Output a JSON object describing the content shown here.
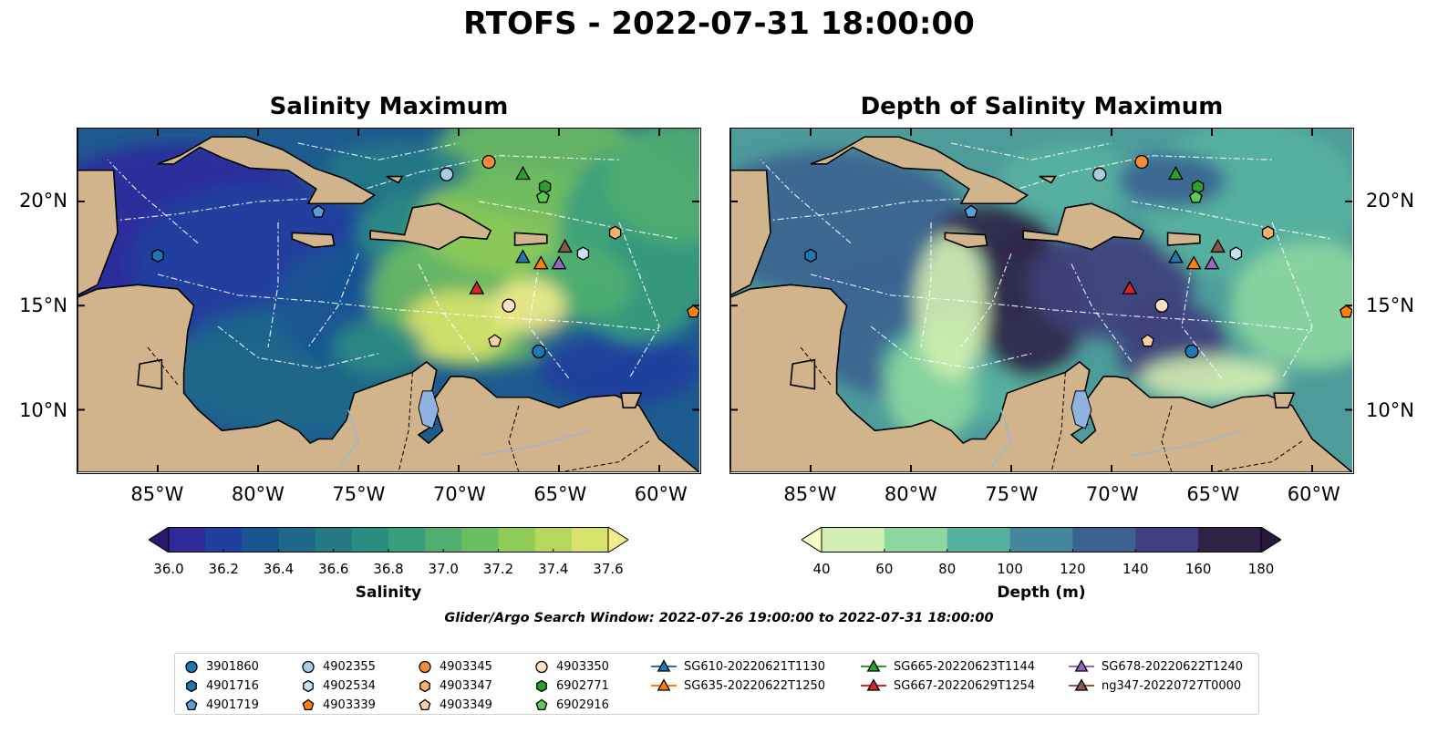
{
  "title": "RTOFS - 2022-07-31 18:00:00",
  "panels": [
    {
      "title": "Salinity Maximum"
    },
    {
      "title": "Depth of Salinity Maximum"
    }
  ],
  "axes": {
    "lon_ticks": [
      "85°W",
      "80°W",
      "75°W",
      "70°W",
      "65°W",
      "60°W"
    ],
    "lon_values": [
      -85,
      -80,
      -75,
      -70,
      -65,
      -60
    ],
    "lat_ticks": [
      "20°N",
      "15°N",
      "10°N"
    ],
    "lat_values": [
      20,
      15,
      10
    ],
    "lon_range": [
      -89,
      -58
    ],
    "lat_range": [
      7,
      23.5
    ]
  },
  "colorbars": [
    {
      "label": "Salinity",
      "ticks": [
        "36.0",
        "36.2",
        "36.4",
        "36.6",
        "36.8",
        "37.0",
        "37.2",
        "37.4",
        "37.6"
      ],
      "colors": [
        "#2a1a6e",
        "#2d2a9c",
        "#203f9f",
        "#1a5592",
        "#1f6889",
        "#257a86",
        "#2b8c82",
        "#399e7c",
        "#4fae70",
        "#6bbd62",
        "#8ecb57",
        "#b4d85b",
        "#d8e36a",
        "#f3ec8c"
      ]
    },
    {
      "label": "Depth (m)",
      "ticks": [
        "40",
        "60",
        "80",
        "100",
        "120",
        "140",
        "160",
        "180"
      ],
      "colors": [
        "#fdfdc6",
        "#d3eeb1",
        "#8dd7a0",
        "#57b1a0",
        "#44879b",
        "#3a6391",
        "#3e3f7c",
        "#2f2247",
        "#281838"
      ]
    }
  ],
  "search_window": "Glider/Argo Search Window: 2022-07-26 19:00:00 to 2022-07-31 18:00:00",
  "legend": [
    {
      "label": "3901860",
      "marker": "circle",
      "color": "#1f77b4"
    },
    {
      "label": "4901716",
      "marker": "hexagon",
      "color": "#1f77b4"
    },
    {
      "label": "4901719",
      "marker": "pentagon",
      "color": "#5a9fd8"
    },
    {
      "label": "4902355",
      "marker": "circle",
      "color": "#a6cee3"
    },
    {
      "label": "4902534",
      "marker": "hexagon",
      "color": "#c6e2f5"
    },
    {
      "label": "4903339",
      "marker": "pentagon",
      "color": "#ff7f0e"
    },
    {
      "label": "4903345",
      "marker": "circle",
      "color": "#f38b3c"
    },
    {
      "label": "4903347",
      "marker": "hexagon",
      "color": "#fdae6b"
    },
    {
      "label": "4903349",
      "marker": "pentagon",
      "color": "#fdd0a2"
    },
    {
      "label": "4903350",
      "marker": "circle",
      "color": "#fde0c5"
    },
    {
      "label": "6902771",
      "marker": "hexagon",
      "color": "#2ca02c"
    },
    {
      "label": "6902916",
      "marker": "pentagon",
      "color": "#5ac85a"
    },
    {
      "label": "SG610-20220621T1130",
      "marker": "triangle",
      "color": "#1f77b4"
    },
    {
      "label": "SG635-20220622T1250",
      "marker": "triangle",
      "color": "#ff7f0e"
    },
    {
      "label": "SG665-20220623T1144",
      "marker": "triangle",
      "color": "#2ca02c"
    },
    {
      "label": "SG667-20220629T1254",
      "marker": "triangle",
      "color": "#d62728"
    },
    {
      "label": "SG678-20220622T1240",
      "marker": "triangle",
      "color": "#9467bd"
    },
    {
      "label": "ng347-20220727T0000",
      "marker": "triangle",
      "color": "#8c564b"
    }
  ],
  "markers": [
    {
      "id": "3901860",
      "lon": -66.0,
      "lat": 12.8
    },
    {
      "id": "4901716",
      "lon": -85.0,
      "lat": 17.4
    },
    {
      "id": "4901719",
      "lon": -77.0,
      "lat": 19.5
    },
    {
      "id": "4902355",
      "lon": -70.6,
      "lat": 21.3
    },
    {
      "id": "4902534",
      "lon": -63.8,
      "lat": 17.5
    },
    {
      "id": "4903339",
      "lon": -58.3,
      "lat": 14.7
    },
    {
      "id": "4903345",
      "lon": -68.5,
      "lat": 21.9
    },
    {
      "id": "4903347",
      "lon": -62.2,
      "lat": 18.5
    },
    {
      "id": "4903349",
      "lon": -68.2,
      "lat": 13.3
    },
    {
      "id": "4903350",
      "lon": -67.5,
      "lat": 15.0
    },
    {
      "id": "6902771",
      "lon": -65.7,
      "lat": 20.7
    },
    {
      "id": "6902916",
      "lon": -65.8,
      "lat": 20.2
    },
    {
      "id": "SG610-20220621T1130",
      "lon": -66.8,
      "lat": 17.3
    },
    {
      "id": "SG635-20220622T1250",
      "lon": -65.9,
      "lat": 17.0
    },
    {
      "id": "SG665-20220623T1144",
      "lon": -66.8,
      "lat": 21.3
    },
    {
      "id": "SG667-20220629T1254",
      "lon": -69.1,
      "lat": 15.8
    },
    {
      "id": "SG678-20220622T1240",
      "lon": -65.0,
      "lat": 17.0
    },
    {
      "id": "ng347-20220727T0000",
      "lon": -64.7,
      "lat": 17.8
    }
  ]
}
